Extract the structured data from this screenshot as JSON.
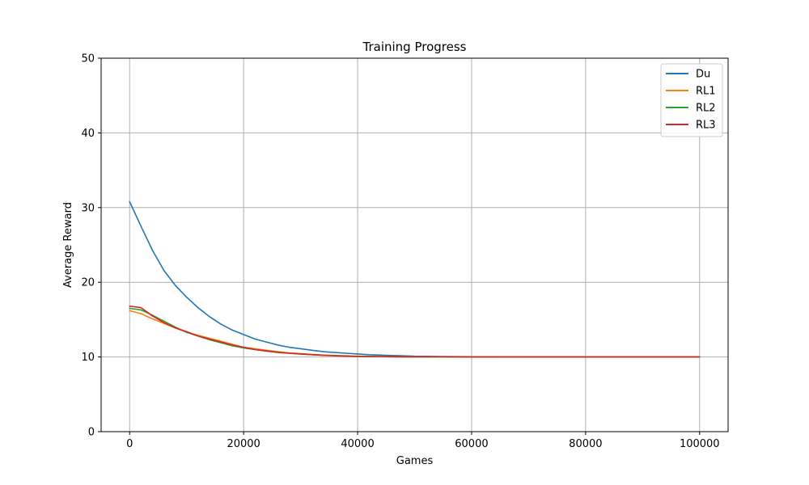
{
  "chart_data": {
    "type": "line",
    "title": "Training Progress",
    "xlabel": "Games",
    "ylabel": "Average Reward",
    "xlim": [
      -5000,
      105000
    ],
    "ylim": [
      0,
      50
    ],
    "xticks": [
      0,
      20000,
      40000,
      60000,
      80000,
      100000
    ],
    "xtick_labels": [
      "0",
      "20000",
      "40000",
      "60000",
      "80000",
      "100000"
    ],
    "yticks": [
      0,
      10,
      20,
      30,
      40,
      50
    ],
    "ytick_labels": [
      "0",
      "10",
      "20",
      "30",
      "40",
      "50"
    ],
    "grid": true,
    "legend_position": "top-right",
    "x_range": [
      0,
      100000
    ],
    "series": [
      {
        "name": "Du",
        "color": "#1f77b4",
        "x": [
          0,
          2000,
          4000,
          6000,
          8000,
          10000,
          12000,
          14000,
          16000,
          18000,
          20000,
          22000,
          24000,
          26000,
          28000,
          30000,
          32000,
          34000,
          36000,
          38000,
          40000,
          42000,
          44000,
          46000,
          48000,
          50000,
          55000,
          60000,
          70000,
          80000,
          90000,
          100000
        ],
        "y": [
          30.8,
          27.5,
          24.3,
          21.6,
          19.6,
          18.0,
          16.6,
          15.4,
          14.4,
          13.6,
          13.0,
          12.4,
          12.0,
          11.6,
          11.3,
          11.1,
          10.9,
          10.7,
          10.6,
          10.5,
          10.4,
          10.3,
          10.25,
          10.2,
          10.15,
          10.1,
          10.05,
          10.03,
          10.01,
          10.0,
          10.0,
          10.0
        ]
      },
      {
        "name": "RL1",
        "color": "#ff7f0e",
        "x": [
          0,
          2000,
          4000,
          6000,
          8000,
          10000,
          12000,
          14000,
          16000,
          18000,
          20000,
          22000,
          24000,
          26000,
          28000,
          30000,
          32000,
          34000,
          36000,
          38000,
          40000,
          44000,
          48000,
          55000,
          60000,
          70000,
          80000,
          90000,
          100000
        ],
        "y": [
          16.2,
          15.8,
          15.1,
          14.5,
          13.9,
          13.3,
          12.9,
          12.5,
          12.1,
          11.7,
          11.3,
          11.1,
          10.9,
          10.7,
          10.55,
          10.45,
          10.35,
          10.25,
          10.2,
          10.15,
          10.1,
          10.05,
          10.03,
          10.01,
          10.0,
          10.0,
          10.0,
          10.0,
          10.0
        ]
      },
      {
        "name": "RL2",
        "color": "#2ca02c",
        "x": [
          0,
          2000,
          4000,
          6000,
          8000,
          10000,
          12000,
          14000,
          16000,
          18000,
          20000,
          22000,
          24000,
          26000,
          28000,
          30000,
          32000,
          34000,
          36000,
          38000,
          40000,
          44000,
          48000,
          55000,
          60000,
          70000,
          80000,
          90000,
          100000
        ],
        "y": [
          16.5,
          16.3,
          15.6,
          14.8,
          14.0,
          13.3,
          12.8,
          12.3,
          11.9,
          11.5,
          11.2,
          11.0,
          10.8,
          10.65,
          10.5,
          10.4,
          10.3,
          10.22,
          10.17,
          10.12,
          10.08,
          10.04,
          10.02,
          10.01,
          10.0,
          10.0,
          10.0,
          10.0,
          10.0
        ]
      },
      {
        "name": "RL3",
        "color": "#d62728",
        "x": [
          0,
          2000,
          4000,
          6000,
          8000,
          10000,
          12000,
          14000,
          16000,
          18000,
          20000,
          22000,
          24000,
          26000,
          28000,
          30000,
          32000,
          34000,
          36000,
          38000,
          40000,
          44000,
          48000,
          55000,
          60000,
          70000,
          80000,
          90000,
          100000
        ],
        "y": [
          16.8,
          16.6,
          15.5,
          14.6,
          13.9,
          13.4,
          12.8,
          12.4,
          12.0,
          11.6,
          11.3,
          11.0,
          10.8,
          10.6,
          10.5,
          10.4,
          10.3,
          10.22,
          10.16,
          10.11,
          10.07,
          10.04,
          10.02,
          10.01,
          10.0,
          10.0,
          10.0,
          10.0,
          10.0
        ]
      }
    ]
  }
}
